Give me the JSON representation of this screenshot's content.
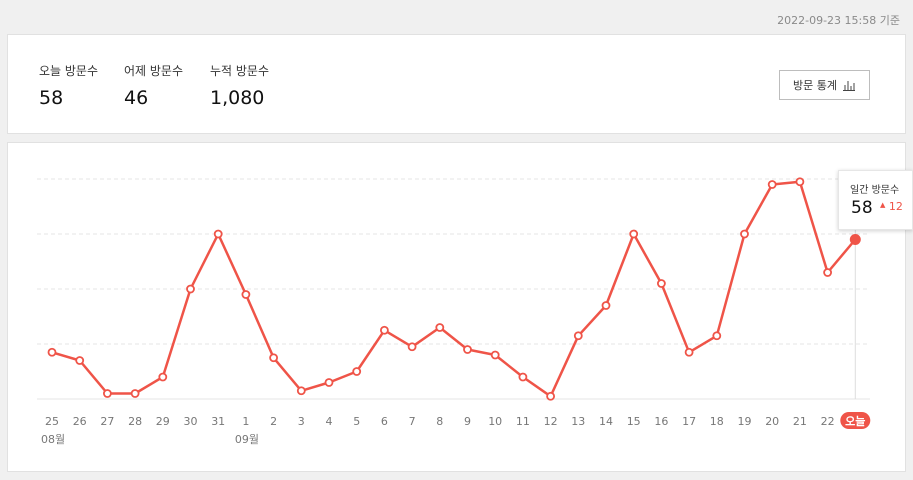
{
  "header": {
    "timestamp": "2022-09-23 15:58 기준"
  },
  "summary": {
    "today_label": "오늘 방문수",
    "today_value": "58",
    "yesterday_label": "어제 방문수",
    "yesterday_value": "46",
    "total_label": "누적 방문수",
    "total_value": "1,080",
    "stats_button_label": "방문 통계",
    "stats_button_icon": "bar-chart-icon"
  },
  "tooltip": {
    "label": "일간 방문수",
    "value": "58",
    "delta": "12",
    "delta_icon": "triangle-up-icon"
  },
  "colors": {
    "line": "#ef5448",
    "grid": "#e4e4e4",
    "tick": "#777777",
    "today_badge": "#ef5448"
  },
  "chart_data": {
    "type": "line",
    "title": "",
    "xlabel": "",
    "ylabel": "",
    "grid": true,
    "y_axis_labels_visible": false,
    "ylim": [
      0,
      80
    ],
    "categories": [
      "25",
      "26",
      "27",
      "28",
      "29",
      "30",
      "31",
      "1",
      "2",
      "3",
      "4",
      "5",
      "6",
      "7",
      "8",
      "9",
      "10",
      "11",
      "12",
      "13",
      "14",
      "15",
      "16",
      "17",
      "18",
      "19",
      "20",
      "21",
      "22",
      "오늘"
    ],
    "month_labels": [
      {
        "category_index": 0,
        "text": "08월"
      },
      {
        "category_index": 7,
        "text": "09월"
      }
    ],
    "highlighted_category_index": 29,
    "series": [
      {
        "values": [
          17,
          14,
          2,
          2,
          8,
          40,
          60,
          38,
          15,
          3,
          6,
          10,
          25,
          19,
          26,
          18,
          16,
          8,
          1,
          23,
          34,
          60,
          42,
          17,
          23,
          60,
          78,
          79,
          46,
          58
        ]
      }
    ]
  }
}
